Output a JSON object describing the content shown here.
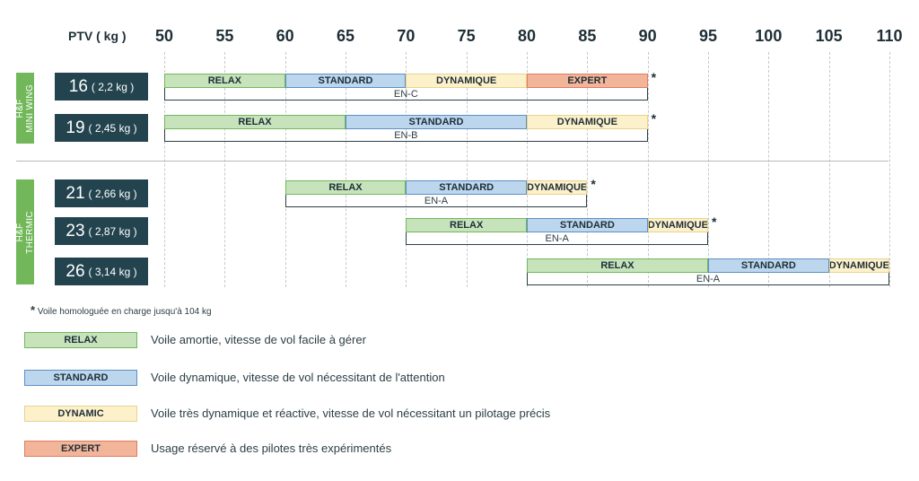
{
  "chart_data": {
    "type": "range-bar",
    "axis_title": "PTV ( kg )",
    "x_ticks": [
      50,
      55,
      60,
      65,
      70,
      75,
      80,
      85,
      90,
      95,
      100,
      105,
      110
    ],
    "xlim": [
      50,
      110
    ],
    "grid": true,
    "groups": [
      {
        "label_lines": [
          "H&F",
          "MINI WING"
        ],
        "sizes": [
          {
            "size": "16",
            "weight": "( 2,2 kg )",
            "segments": [
              {
                "label": "RELAX",
                "class": "relax",
                "start": 50,
                "end": 60
              },
              {
                "label": "STANDARD",
                "class": "standard",
                "start": 60,
                "end": 70
              },
              {
                "label": "DYNAMIQUE",
                "class": "dynamique",
                "start": 70,
                "end": 80
              },
              {
                "label": "EXPERT",
                "class": "expert",
                "start": 80,
                "end": 90
              }
            ],
            "asterisk": "*",
            "certification": "EN-C"
          },
          {
            "size": "19",
            "weight": "( 2,45 kg )",
            "segments": [
              {
                "label": "RELAX",
                "class": "relax",
                "start": 50,
                "end": 65
              },
              {
                "label": "STANDARD",
                "class": "standard",
                "start": 65,
                "end": 80
              },
              {
                "label": "DYNAMIQUE",
                "class": "dynamique",
                "start": 80,
                "end": 90
              }
            ],
            "asterisk": "*",
            "certification": "EN-B"
          }
        ]
      },
      {
        "label_lines": [
          "H&F",
          "THERMIC"
        ],
        "sizes": [
          {
            "size": "21",
            "weight": "( 2,66 kg )",
            "segments": [
              {
                "label": "RELAX",
                "class": "relax",
                "start": 60,
                "end": 70
              },
              {
                "label": "STANDARD",
                "class": "standard",
                "start": 70,
                "end": 80
              },
              {
                "label": "DYNAMIQUE",
                "class": "dynamique",
                "start": 80,
                "end": 85
              }
            ],
            "asterisk": "*",
            "certification": "EN-A"
          },
          {
            "size": "23",
            "weight": "( 2,87 kg )",
            "segments": [
              {
                "label": "RELAX",
                "class": "relax",
                "start": 70,
                "end": 80
              },
              {
                "label": "STANDARD",
                "class": "standard",
                "start": 80,
                "end": 90
              },
              {
                "label": "DYNAMIQUE",
                "class": "dynamique",
                "start": 90,
                "end": 95
              }
            ],
            "asterisk": "*",
            "certification": "EN-A"
          },
          {
            "size": "26",
            "weight": "( 3,14 kg )",
            "segments": [
              {
                "label": "RELAX",
                "class": "relax",
                "start": 80,
                "end": 95
              },
              {
                "label": "STANDARD",
                "class": "standard",
                "start": 95,
                "end": 105
              },
              {
                "label": "DYNAMIQUE",
                "class": "dynamique",
                "start": 105,
                "end": 110
              }
            ],
            "asterisk": "",
            "certification": "EN-A"
          }
        ]
      }
    ],
    "footnote": {
      "star": "*",
      "text": "Voile homologuée en charge jusqu'à 104 kg"
    },
    "legend": [
      {
        "label": "RELAX",
        "class": "relax",
        "description": "Voile amortie, vitesse de vol facile à gérer"
      },
      {
        "label": "STANDARD",
        "class": "standard",
        "description": "Voile dynamique, vitesse de vol nécessitant de l'attention"
      },
      {
        "label": "DYNAMIC",
        "class": "dynamique",
        "description": "Voile très dynamique et réactive, vitesse de vol nécessitant un pilotage précis"
      },
      {
        "label": "EXPERT",
        "class": "expert",
        "description": "Usage réservé à des pilotes très expérimentés"
      }
    ],
    "colors": {
      "relax": "#c6e3bc",
      "standard": "#bcd6ee",
      "dynamique": "#fdf1cc",
      "expert": "#f3b59a",
      "group_label": "#72b85a",
      "size_box": "#23444e"
    }
  }
}
